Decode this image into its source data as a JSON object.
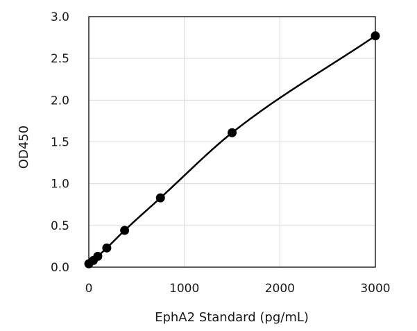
{
  "chart_data": {
    "type": "scatter",
    "title": "",
    "xlabel": "EphA2 Standard (pg/mL)",
    "ylabel": "OD450",
    "xlim": [
      0,
      3000
    ],
    "ylim": [
      0,
      3.0
    ],
    "x_ticks": [
      0,
      1000,
      2000,
      3000
    ],
    "x_tick_labels": [
      "0",
      "1000",
      "2000",
      "3000"
    ],
    "y_ticks": [
      0,
      0.5,
      1.0,
      1.5,
      2.0,
      2.5,
      3.0
    ],
    "y_tick_labels": [
      "0.0",
      "0.5",
      "1.0",
      "1.5",
      "2.0",
      "2.5",
      "3.0"
    ],
    "grid": true,
    "legend": "none",
    "series": [
      {
        "points": [
          {
            "x": 0,
            "y": 0.04
          },
          {
            "x": 47,
            "y": 0.08
          },
          {
            "x": 94,
            "y": 0.13
          },
          {
            "x": 188,
            "y": 0.23
          },
          {
            "x": 375,
            "y": 0.44
          },
          {
            "x": 750,
            "y": 0.83
          },
          {
            "x": 1500,
            "y": 1.61
          },
          {
            "x": 3000,
            "y": 2.77
          }
        ],
        "fit_curve": true,
        "color": "#000000"
      }
    ]
  }
}
